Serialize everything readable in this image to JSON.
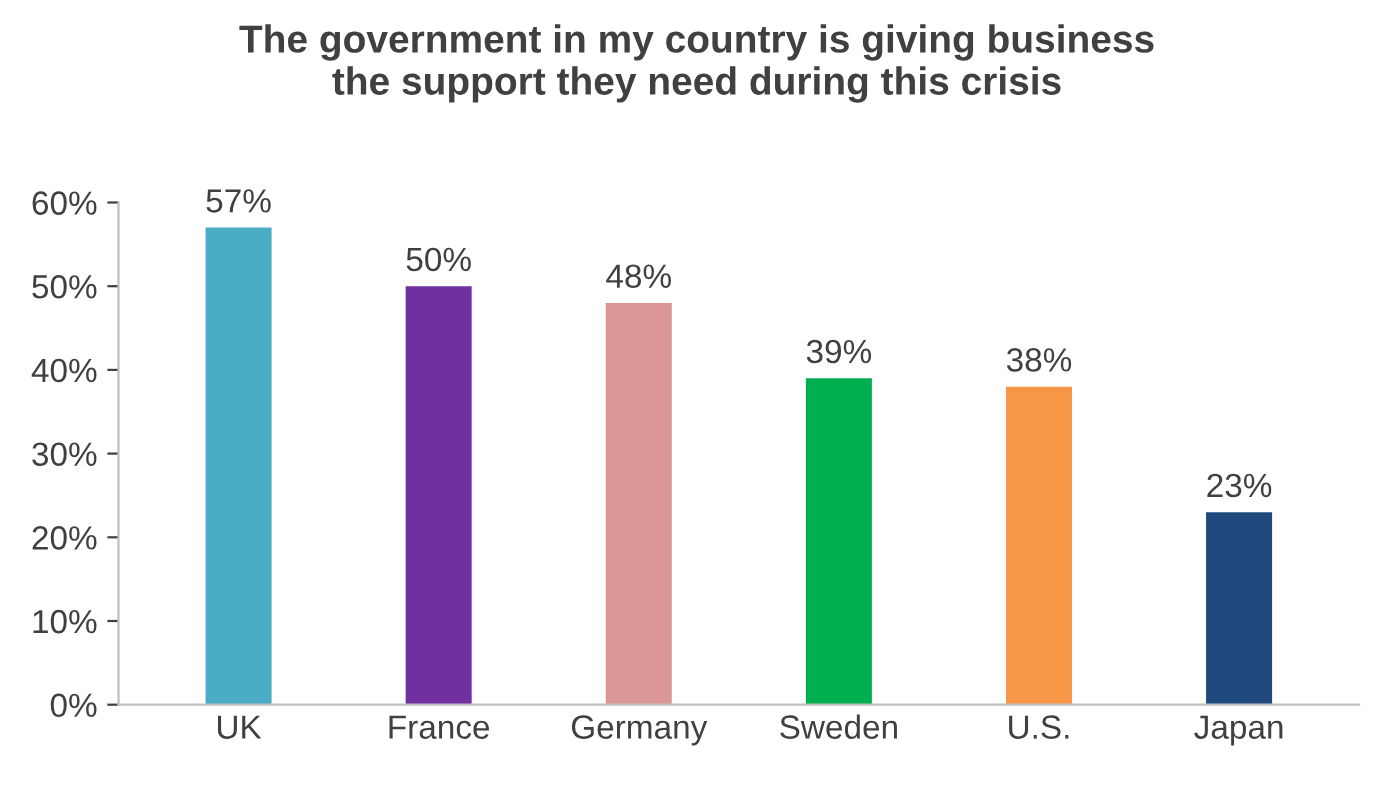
{
  "chart_data": {
    "type": "bar",
    "title": "The government in my country is giving business\nthe support they need during this crisis",
    "categories": [
      "UK",
      "France",
      "Germany",
      "Sweden",
      "U.S.",
      "Japan"
    ],
    "values": [
      57,
      50,
      48,
      39,
      38,
      23
    ],
    "colors": [
      "#4bacc6",
      "#7030a0",
      "#da9694",
      "#00b050",
      "#f79646",
      "#1f497d"
    ],
    "value_labels": [
      "57%",
      "50%",
      "48%",
      "39%",
      "38%",
      "23%"
    ],
    "ylim": [
      0,
      60
    ],
    "yticks": [
      {
        "value": 0,
        "label": "0%"
      },
      {
        "value": 10,
        "label": "10%"
      },
      {
        "value": 20,
        "label": "20%"
      },
      {
        "value": 30,
        "label": "30%"
      },
      {
        "value": 40,
        "label": "40%"
      },
      {
        "value": 50,
        "label": "50%"
      },
      {
        "value": 60,
        "label": "60%"
      }
    ],
    "grid": false,
    "legend": false
  }
}
